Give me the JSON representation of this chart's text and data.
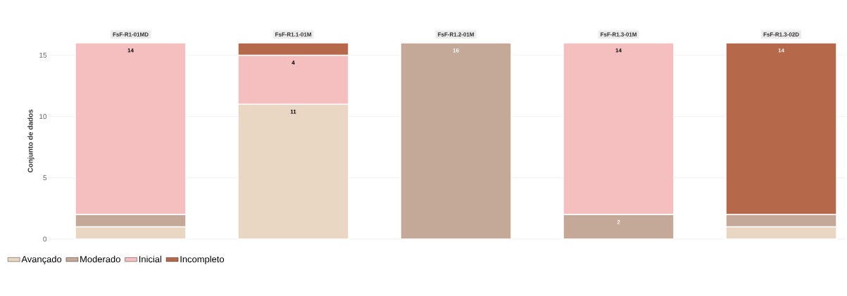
{
  "chart_data": {
    "type": "bar",
    "stacked": true,
    "ylabel": "Conjunto de dados",
    "categories": [
      "FsF-R1-01MD",
      "FsF-R1.1-01M",
      "FsF-R1.2-01M",
      "FsF-R1.3-01M",
      "FsF-R1.3-02D"
    ],
    "series": [
      {
        "name": "Avançado",
        "color": "#ead7c3",
        "values": [
          1,
          11,
          null,
          null,
          1
        ],
        "value_labels": [
          null,
          "11",
          null,
          null,
          null
        ]
      },
      {
        "name": "Moderado",
        "color": "#c4a898",
        "values": [
          1,
          null,
          16,
          2,
          1
        ],
        "value_labels": [
          null,
          null,
          "16",
          "2",
          null
        ]
      },
      {
        "name": "Inicial",
        "color": "#f6bfbf",
        "values": [
          14,
          4,
          null,
          14,
          null
        ],
        "value_labels": [
          "14",
          "4",
          null,
          "14",
          null
        ]
      },
      {
        "name": "Incompleto",
        "color": "#b5694a",
        "values": [
          null,
          1,
          null,
          null,
          14
        ],
        "value_labels": [
          null,
          null,
          null,
          null,
          "14"
        ]
      }
    ],
    "ylim": [
      0,
      16
    ],
    "yticks": [
      0,
      5,
      10,
      15
    ],
    "grid": "y",
    "legend": "bottom left"
  }
}
